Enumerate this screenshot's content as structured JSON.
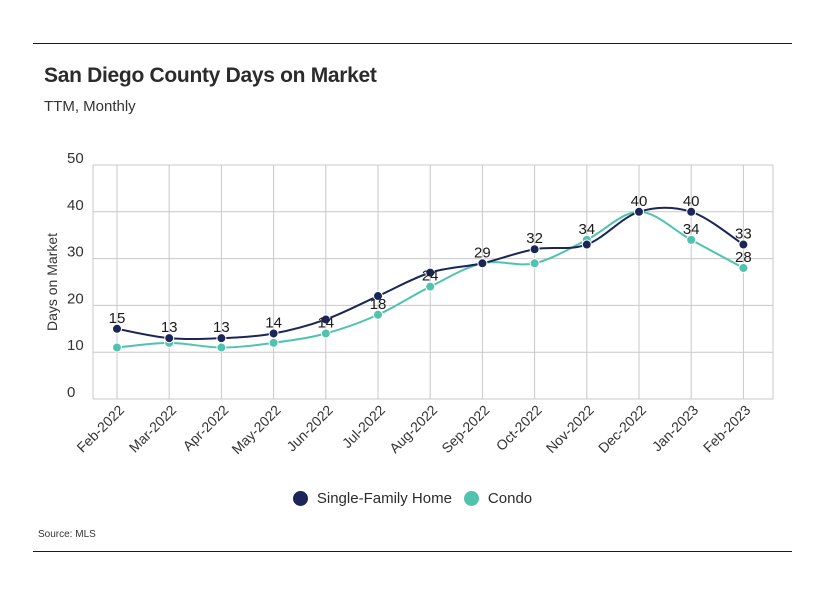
{
  "header": {
    "title": "San Diego County Days on Market",
    "subtitle": "TTM, Monthly"
  },
  "footer": {
    "source": "Source:  MLS"
  },
  "colors": {
    "single_family": "#1b2557",
    "condo": "#4fc3ad",
    "grid": "#c8c8c8"
  },
  "chart_data": {
    "type": "line",
    "ylabel": "Days on Market",
    "xlabel": "",
    "ylim": [
      0,
      50
    ],
    "yticks": [
      0,
      10,
      20,
      30,
      40,
      50
    ],
    "grid": true,
    "legend_position": "bottom",
    "categories": [
      "Feb-2022",
      "Mar-2022",
      "Apr-2022",
      "May-2022",
      "Jun-2022",
      "Jul-2022",
      "Aug-2022",
      "Sep-2022",
      "Oct-2022",
      "Nov-2022",
      "Dec-2022",
      "Jan-2023",
      "Feb-2023"
    ],
    "series": [
      {
        "name": "Single-Family Home",
        "values": [
          15,
          13,
          13,
          14,
          17,
          22,
          27,
          29,
          32,
          33,
          40,
          40,
          33
        ],
        "labels": [
          "15",
          "13",
          "13",
          "14",
          "",
          "",
          "",
          "29",
          "32",
          "",
          "40",
          "40",
          "33"
        ]
      },
      {
        "name": "Condo",
        "values": [
          11,
          12,
          11,
          12,
          14,
          18,
          24,
          29,
          29,
          34,
          40,
          34,
          28
        ],
        "labels": [
          "",
          "",
          "",
          "",
          "14",
          "18",
          "24",
          "",
          "",
          "34",
          "",
          "34",
          "28"
        ]
      }
    ]
  }
}
